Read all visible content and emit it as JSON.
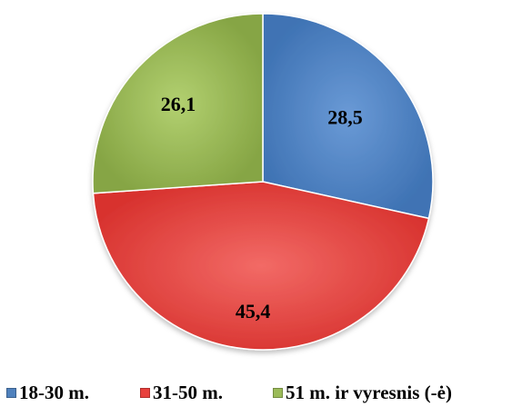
{
  "chart_data": {
    "type": "pie",
    "categories": [
      "18-30 m.",
      "31-50 m.",
      "51 m. ir vyresnis (-ė)"
    ],
    "values": [
      28.5,
      45.4,
      26.1
    ],
    "value_labels": [
      "28,5",
      "45,4",
      "26,1"
    ],
    "colors": [
      "#4f81bd",
      "#e8403c",
      "#9bbb59"
    ],
    "start_angle_deg": 0,
    "direction": "clockwise",
    "legend_position": "bottom"
  }
}
